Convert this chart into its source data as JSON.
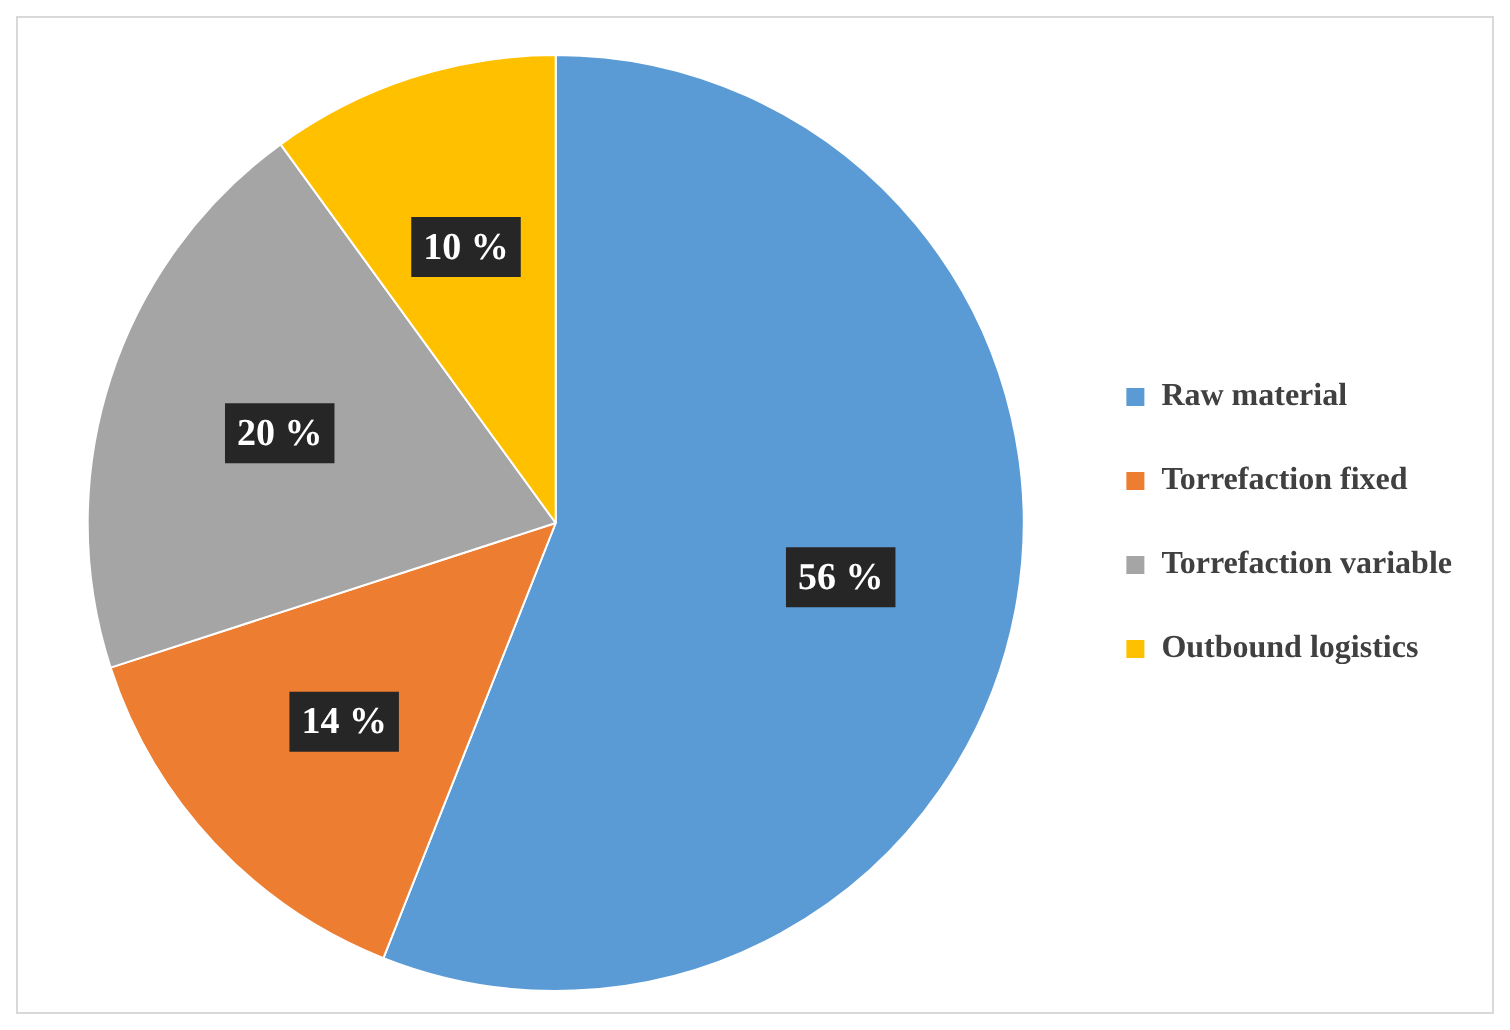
{
  "chart_data": {
    "type": "pie",
    "categories": [
      "Raw material",
      "Torrefaction fixed",
      "Torrefaction variable",
      "Outbound logistics"
    ],
    "values": [
      56,
      14,
      20,
      10
    ],
    "value_labels": [
      "56 %",
      "14 %",
      "20 %",
      "10 %"
    ],
    "colors": [
      "#5b9bd5",
      "#ed7d31",
      "#a5a5a5",
      "#ffc000"
    ],
    "legend": "right"
  }
}
